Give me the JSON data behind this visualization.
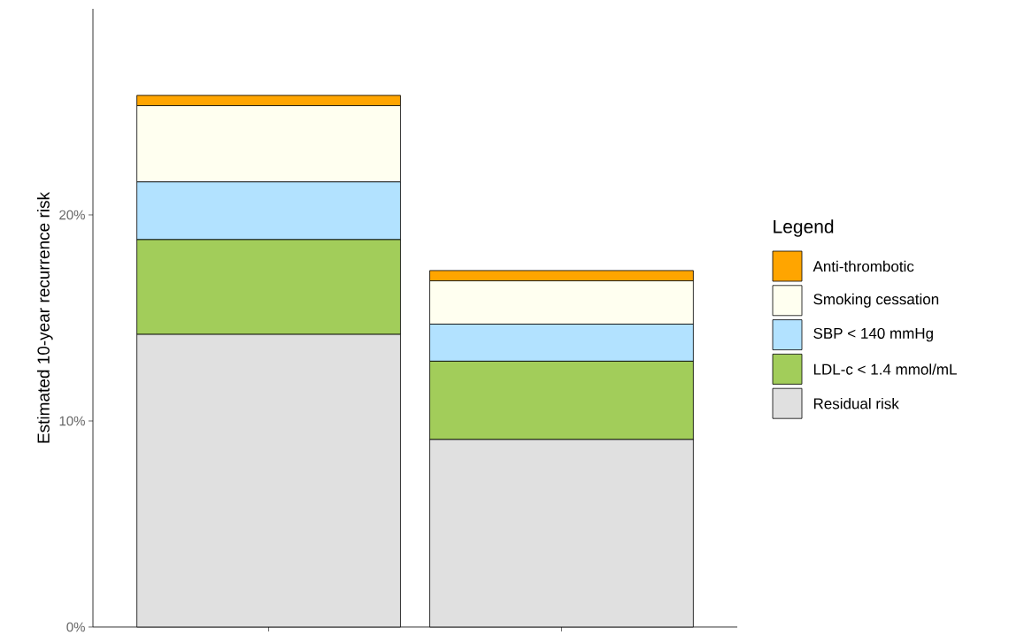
{
  "chart_data": {
    "type": "bar",
    "stacked": true,
    "ylabel": "Estimated 10-year recurrence risk",
    "legend_title": "Legend",
    "legend": "right",
    "grid": false,
    "categories": [
      null,
      null
    ],
    "ylim": [
      0,
      30
    ],
    "yticks": [
      {
        "value": 0,
        "label": "0%"
      },
      {
        "value": 10,
        "label": "10%"
      },
      {
        "value": 20,
        "label": "20%"
      }
    ],
    "series": [
      {
        "name": "Residual risk",
        "color": "#e0e0e0",
        "values": [
          14.2,
          9.1
        ]
      },
      {
        "name": "LDL-c < 1.4 mmol/mL",
        "color": "#a2cd5a",
        "values": [
          4.6,
          3.8
        ]
      },
      {
        "name": "SBP < 140 mmHg",
        "color": "#b2e2ff",
        "values": [
          2.8,
          1.8
        ]
      },
      {
        "name": "Smoking cessation",
        "color": "#fffff0",
        "values": [
          3.7,
          2.1
        ]
      },
      {
        "name": "Anti-thrombotic",
        "color": "#ffa500",
        "values": [
          0.5,
          0.5
        ]
      }
    ]
  }
}
